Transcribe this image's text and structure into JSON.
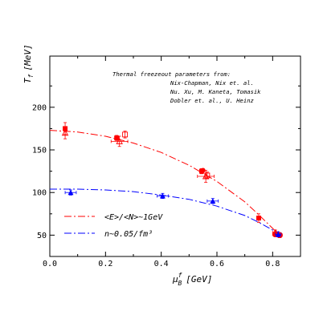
{
  "chart_data": {
    "type": "scatter",
    "title": "",
    "xlabel_main": "μ",
    "xlabel_sup": "f",
    "xlabel_sub": "B",
    "xlabel_unit": "[GeV]",
    "ylabel_main": "T",
    "ylabel_sub": "f",
    "ylabel_unit": "[MeV]",
    "xlim": [
      0.0,
      0.9
    ],
    "ylim": [
      25,
      260
    ],
    "x_ticks": [
      0.0,
      0.2,
      0.4,
      0.6,
      0.8
    ],
    "x_tick_labels": [
      "0.0",
      "0.2",
      "0.4",
      "0.6",
      "0.8"
    ],
    "y_ticks": [
      50,
      100,
      150,
      200
    ],
    "y_tick_labels": [
      "50",
      "100",
      "150",
      "200"
    ],
    "grid": false,
    "annotation_lines": [
      "Thermal freezeout parameters from:",
      "Nix-Chapman, Nix et. al.",
      "Nu. Xu, M. Kaneta, Tomasik",
      "Dobler et. al., U. Heinz"
    ],
    "legend_position": "bottom-left",
    "curves": [
      {
        "name": "<E>/<N>~1GeV",
        "color": "#ff0000",
        "x": [
          0.0,
          0.1,
          0.2,
          0.3,
          0.4,
          0.5,
          0.6,
          0.7,
          0.75,
          0.8,
          0.83
        ],
        "y": [
          173,
          171,
          166,
          158,
          147,
          132,
          113,
          89,
          74,
          58,
          48
        ]
      },
      {
        "name": "n~0.05/fm³",
        "color": "#0000ff",
        "x": [
          0.0,
          0.1,
          0.2,
          0.3,
          0.4,
          0.5,
          0.6,
          0.7,
          0.75,
          0.8,
          0.83
        ],
        "y": [
          104,
          104,
          103,
          101,
          97,
          92,
          84,
          73,
          65,
          56,
          51
        ]
      }
    ],
    "series": [
      {
        "color": "#ff0000",
        "marker": "square",
        "points": [
          {
            "x": 0.055,
            "y": 175,
            "yerr": 7,
            "xerr": 0
          },
          {
            "x": 0.24,
            "y": 164,
            "yerr": 3,
            "xerr": 0
          },
          {
            "x": 0.545,
            "y": 125,
            "yerr": 3,
            "xerr": 0
          },
          {
            "x": 0.75,
            "y": 70,
            "yerr": 5,
            "xerr": 0
          },
          {
            "x": 0.81,
            "y": 51,
            "yerr": 3,
            "xerr": 0.01
          },
          {
            "x": 0.825,
            "y": 50,
            "yerr": 3,
            "xerr": 0.01
          }
        ]
      },
      {
        "color": "#ff0000",
        "marker": "open-triangle",
        "points": [
          {
            "x": 0.055,
            "y": 170,
            "yerr": 7,
            "xerr": 0
          },
          {
            "x": 0.25,
            "y": 160,
            "yerr": 6,
            "xerr": 0.03
          },
          {
            "x": 0.56,
            "y": 119,
            "yerr": 7,
            "xerr": 0.03
          },
          {
            "x": 0.81,
            "y": 53,
            "yerr": 3,
            "xerr": 0.01
          }
        ]
      },
      {
        "color": "#ff0000",
        "marker": "open-square",
        "points": [
          {
            "x": 0.27,
            "y": 168,
            "yerr": 4,
            "xerr": 0
          },
          {
            "x": 0.565,
            "y": 120,
            "yerr": 4,
            "xerr": 0
          }
        ]
      },
      {
        "color": "#ff0000",
        "marker": "circle",
        "points": [
          {
            "x": 0.55,
            "y": 126,
            "yerr": 0,
            "xerr": 0
          }
        ]
      },
      {
        "color": "#0000ff",
        "marker": "triangle",
        "points": [
          {
            "x": 0.075,
            "y": 100,
            "yerr": 3,
            "xerr": 0.02
          },
          {
            "x": 0.405,
            "y": 96,
            "yerr": 3,
            "xerr": 0.02
          },
          {
            "x": 0.585,
            "y": 90,
            "yerr": 3,
            "xerr": 0.02
          },
          {
            "x": 0.82,
            "y": 51,
            "yerr": 3,
            "xerr": 0.01
          }
        ]
      }
    ]
  }
}
